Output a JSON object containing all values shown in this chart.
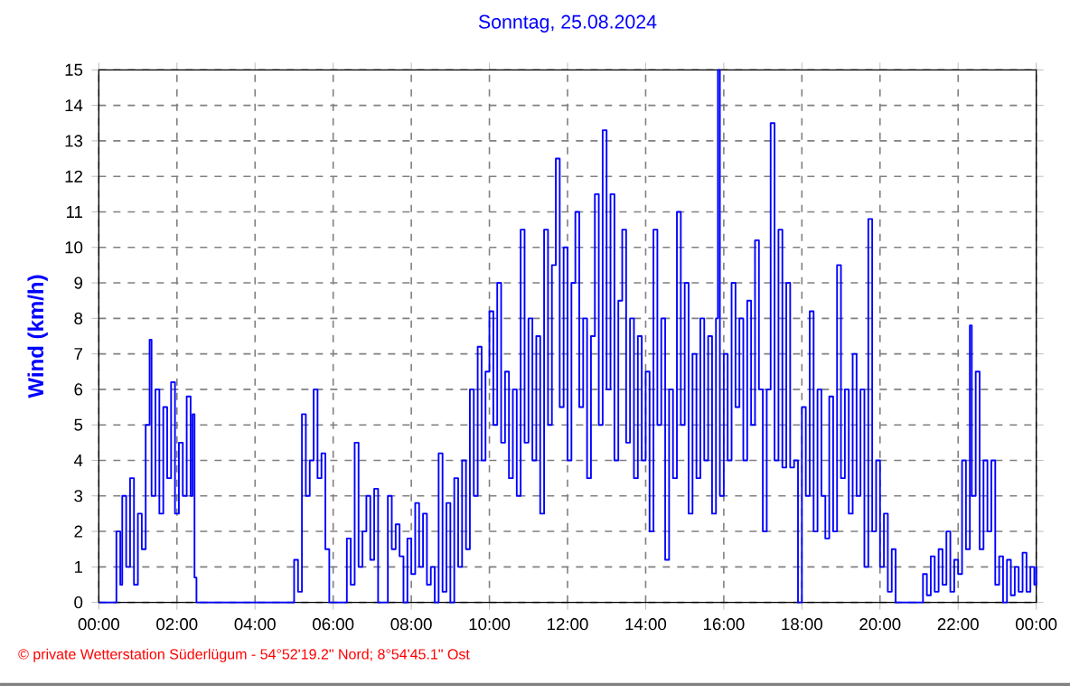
{
  "chart_data": {
    "type": "step",
    "title": "Sonntag, 25.08.2024",
    "ylabel": "Wind  (km/h)",
    "annotations": [
      "© private Wetterstation Süderlügum  -  54°52'19.2\" Nord; 8°54'45.1\" Ost"
    ],
    "xlim": [
      0,
      24
    ],
    "xticks": [
      {
        "value": 0,
        "label": "00:00"
      },
      {
        "value": 2,
        "label": "02:00"
      },
      {
        "value": 4,
        "label": "04:00"
      },
      {
        "value": 6,
        "label": "06:00"
      },
      {
        "value": 8,
        "label": "08:00"
      },
      {
        "value": 10,
        "label": "10:00"
      },
      {
        "value": 12,
        "label": "12:00"
      },
      {
        "value": 14,
        "label": "14:00"
      },
      {
        "value": 16,
        "label": "16:00"
      },
      {
        "value": 18,
        "label": "18:00"
      },
      {
        "value": 20,
        "label": "20:00"
      },
      {
        "value": 22,
        "label": "22:00"
      },
      {
        "value": 24,
        "label": "00:00"
      }
    ],
    "ylim": [
      0,
      15
    ],
    "yticks": [
      0,
      1,
      2,
      3,
      4,
      5,
      6,
      7,
      8,
      9,
      10,
      11,
      12,
      13,
      14,
      15
    ],
    "grid": true,
    "series": [
      {
        "color": "#0000ff",
        "x": [
          0,
          0.4,
          0.45,
          0.55,
          0.6,
          0.7,
          0.8,
          0.9,
          1.0,
          1.1,
          1.2,
          1.3,
          1.35,
          1.45,
          1.55,
          1.65,
          1.75,
          1.85,
          1.95,
          2.05,
          2.15,
          2.25,
          2.35,
          2.4,
          2.45,
          2.5,
          4.95,
          5.0,
          5.1,
          5.2,
          5.3,
          5.4,
          5.5,
          5.6,
          5.7,
          5.8,
          5.9,
          6.3,
          6.35,
          6.45,
          6.55,
          6.65,
          6.75,
          6.85,
          6.95,
          7.05,
          7.15,
          7.35,
          7.4,
          7.5,
          7.6,
          7.7,
          7.8,
          7.9,
          8.0,
          8.1,
          8.2,
          8.3,
          8.4,
          8.5,
          8.6,
          8.7,
          8.8,
          8.9,
          9.0,
          9.1,
          9.2,
          9.3,
          9.4,
          9.5,
          9.6,
          9.7,
          9.8,
          9.9,
          10.0,
          10.1,
          10.2,
          10.3,
          10.4,
          10.5,
          10.6,
          10.7,
          10.8,
          10.9,
          11.0,
          11.1,
          11.2,
          11.3,
          11.4,
          11.5,
          11.6,
          11.7,
          11.8,
          11.9,
          12.0,
          12.1,
          12.2,
          12.3,
          12.4,
          12.5,
          12.6,
          12.7,
          12.8,
          12.9,
          13.0,
          13.1,
          13.2,
          13.3,
          13.4,
          13.5,
          13.6,
          13.7,
          13.8,
          13.9,
          14.0,
          14.1,
          14.2,
          14.3,
          14.4,
          14.5,
          14.6,
          14.7,
          14.8,
          14.9,
          15.0,
          15.1,
          15.2,
          15.3,
          15.4,
          15.5,
          15.6,
          15.7,
          15.8,
          15.85,
          15.9,
          16.0,
          16.1,
          16.2,
          16.3,
          16.4,
          16.5,
          16.6,
          16.7,
          16.8,
          16.9,
          17.0,
          17.1,
          17.2,
          17.3,
          17.4,
          17.5,
          17.6,
          17.7,
          17.8,
          17.9,
          18.0,
          18.1,
          18.2,
          18.3,
          18.4,
          18.5,
          18.6,
          18.7,
          18.8,
          18.9,
          19.0,
          19.1,
          19.2,
          19.3,
          19.4,
          19.5,
          19.6,
          19.7,
          19.8,
          19.9,
          20.0,
          20.1,
          20.2,
          20.3,
          20.4,
          21.0,
          21.1,
          21.2,
          21.3,
          21.4,
          21.5,
          21.6,
          21.7,
          21.8,
          21.9,
          22.0,
          22.1,
          22.2,
          22.3,
          22.35,
          22.45,
          22.55,
          22.65,
          22.75,
          22.85,
          22.95,
          23.05,
          23.15,
          23.25,
          23.35,
          23.45,
          23.55,
          23.65,
          23.75,
          23.85,
          23.95,
          24
        ],
        "values": [
          0,
          0,
          2,
          0.5,
          3,
          1,
          3.5,
          0.5,
          2.5,
          1.5,
          5,
          7.4,
          3,
          6,
          2.5,
          5.5,
          3.5,
          6.2,
          2.5,
          4.5,
          3,
          5.8,
          3,
          5.3,
          0.7,
          0,
          0,
          1.2,
          0.3,
          5.3,
          3,
          4,
          6,
          3.5,
          4.2,
          1.5,
          0,
          0,
          1.8,
          0.5,
          4.5,
          1,
          2,
          3,
          1.2,
          3.2,
          0,
          0,
          3,
          1.5,
          2.2,
          1.3,
          0,
          1.8,
          0.8,
          2.8,
          1,
          2.5,
          0.5,
          1,
          0,
          4.2,
          0.3,
          2.8,
          0,
          3.5,
          1,
          4,
          1.5,
          6,
          3,
          7.2,
          4,
          6.5,
          8.2,
          5,
          9,
          4.5,
          6.5,
          3.5,
          6,
          3,
          10.5,
          4.5,
          8,
          4,
          7.5,
          2.5,
          10.5,
          5,
          9.5,
          12.5,
          5.5,
          10,
          4,
          9,
          11,
          5.5,
          8,
          3.5,
          7.5,
          11.5,
          5,
          13.3,
          6,
          11.5,
          4,
          8.5,
          10.5,
          4.5,
          8,
          3.5,
          7.5,
          4,
          6.5,
          2,
          10.5,
          5,
          8,
          1.2,
          6,
          3.5,
          11,
          5,
          9,
          2.5,
          7,
          3.5,
          8,
          4,
          7.5,
          2.5,
          8,
          15,
          3,
          7,
          4,
          9,
          5.5,
          8,
          4,
          8.5,
          5,
          10.2,
          6,
          2,
          6,
          13.5,
          4,
          10.5,
          3.8,
          9,
          3.8,
          4,
          0,
          5.5,
          3,
          8.2,
          2,
          6,
          3,
          1.8,
          5.8,
          2,
          9.5,
          3.5,
          6,
          2.5,
          7,
          3,
          6,
          1,
          10.8,
          2,
          4,
          1,
          2.5,
          0.3,
          1.5,
          0,
          0,
          0.8,
          0.2,
          1.3,
          0.3,
          1.5,
          0.5,
          2,
          0.3,
          1.2,
          0.8,
          4,
          1.5,
          7.8,
          3,
          6.5,
          1.5,
          4,
          2,
          4,
          0.5,
          1.3,
          0,
          1.2,
          0.2,
          1,
          0.3,
          1.4,
          0.3,
          1,
          0.5,
          1
        ]
      }
    ]
  }
}
